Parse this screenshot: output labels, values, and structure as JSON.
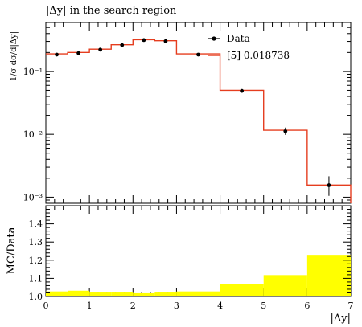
{
  "chart_data": [
    {
      "type": "line",
      "title": "|Δy| in the search region",
      "ylabel": "1/σ dσ/d|Δy|",
      "xlabel": "|Δy|",
      "xlim": [
        0,
        7
      ],
      "ylim": [
        0.0008,
        0.6
      ],
      "yscale": "log",
      "grid": false,
      "legend_position": "top-right",
      "x_ticks": [
        "0",
        "1",
        "2",
        "3",
        "4",
        "5",
        "6",
        "7"
      ],
      "y_ticks": [
        "10⁻³",
        "10⁻²",
        "10⁻¹"
      ],
      "series": [
        {
          "name": "Data",
          "kind": "points",
          "color": "#000000",
          "x": [
            0.25,
            0.75,
            1.25,
            1.75,
            2.25,
            2.75,
            3.5,
            4.5,
            5.5,
            6.5
          ],
          "y": [
            0.185,
            0.195,
            0.222,
            0.262,
            0.315,
            0.302,
            0.185,
            0.049,
            0.0112,
            0.00155
          ],
          "yerr_low": [
            0.004,
            0.004,
            0.004,
            0.005,
            0.005,
            0.005,
            0.004,
            0.0015,
            0.0014,
            0.0005
          ],
          "yerr_high": [
            0.004,
            0.004,
            0.004,
            0.005,
            0.005,
            0.005,
            0.004,
            0.0015,
            0.0016,
            0.0006
          ]
        },
        {
          "name": "[5] 0.018738",
          "kind": "step",
          "color": "#e53d1f",
          "bin_edges": [
            0,
            0.5,
            1.0,
            1.5,
            2.0,
            2.5,
            3.0,
            4.0,
            5.0,
            6.0,
            7.0
          ],
          "values": [
            0.19,
            0.2,
            0.226,
            0.266,
            0.32,
            0.308,
            0.19,
            0.05,
            0.0116,
            0.00156
          ]
        }
      ]
    },
    {
      "type": "area",
      "ylabel": "MC/Data",
      "xlabel": "|Δy|",
      "xlim": [
        0,
        7
      ],
      "ylim": [
        1.0,
        1.5
      ],
      "grid": false,
      "x_ticks": [
        "0",
        "1",
        "2",
        "3",
        "4",
        "5",
        "6",
        "7"
      ],
      "y_ticks": [
        "1.0",
        "1.1",
        "1.2",
        "1.3",
        "1.4"
      ],
      "band_color": "#ffff00",
      "bin_edges": [
        0,
        0.5,
        1.0,
        1.5,
        2.0,
        2.5,
        3.0,
        4.0,
        5.0,
        6.0,
        7.0
      ],
      "values": [
        1.028,
        1.032,
        1.022,
        1.022,
        1.018,
        1.022,
        1.028,
        1.068,
        1.118,
        1.225
      ]
    }
  ]
}
